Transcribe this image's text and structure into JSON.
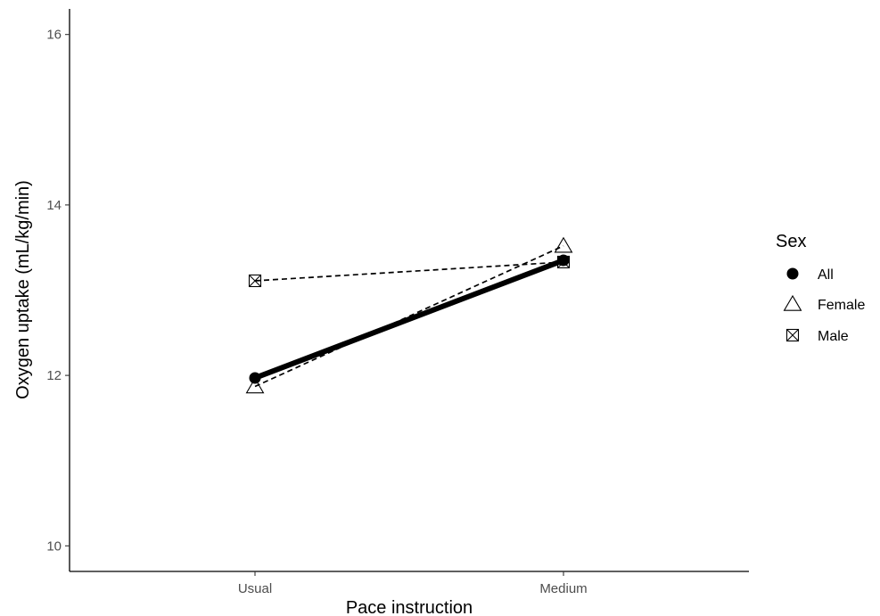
{
  "chart_data": {
    "type": "line",
    "xlabel": "Pace instruction",
    "ylabel": "Oxygen uptake (mL/kg/min)",
    "categories": [
      "Usual",
      "Medium"
    ],
    "ylim": [
      9.7,
      16.3
    ],
    "yticks": [
      10,
      12,
      14,
      16
    ],
    "grid": false,
    "legend": {
      "title": "Sex",
      "position": "right"
    },
    "series": [
      {
        "name": "All",
        "values": [
          11.97,
          13.35
        ],
        "marker": "filled-circle",
        "line": "solid-thick",
        "color": "#000000"
      },
      {
        "name": "Female",
        "values": [
          11.87,
          13.52
        ],
        "marker": "open-triangle",
        "line": "dashed",
        "color": "#000000"
      },
      {
        "name": "Male",
        "values": [
          13.11,
          13.33
        ],
        "marker": "square-cross",
        "line": "dashed",
        "color": "#000000"
      }
    ]
  }
}
